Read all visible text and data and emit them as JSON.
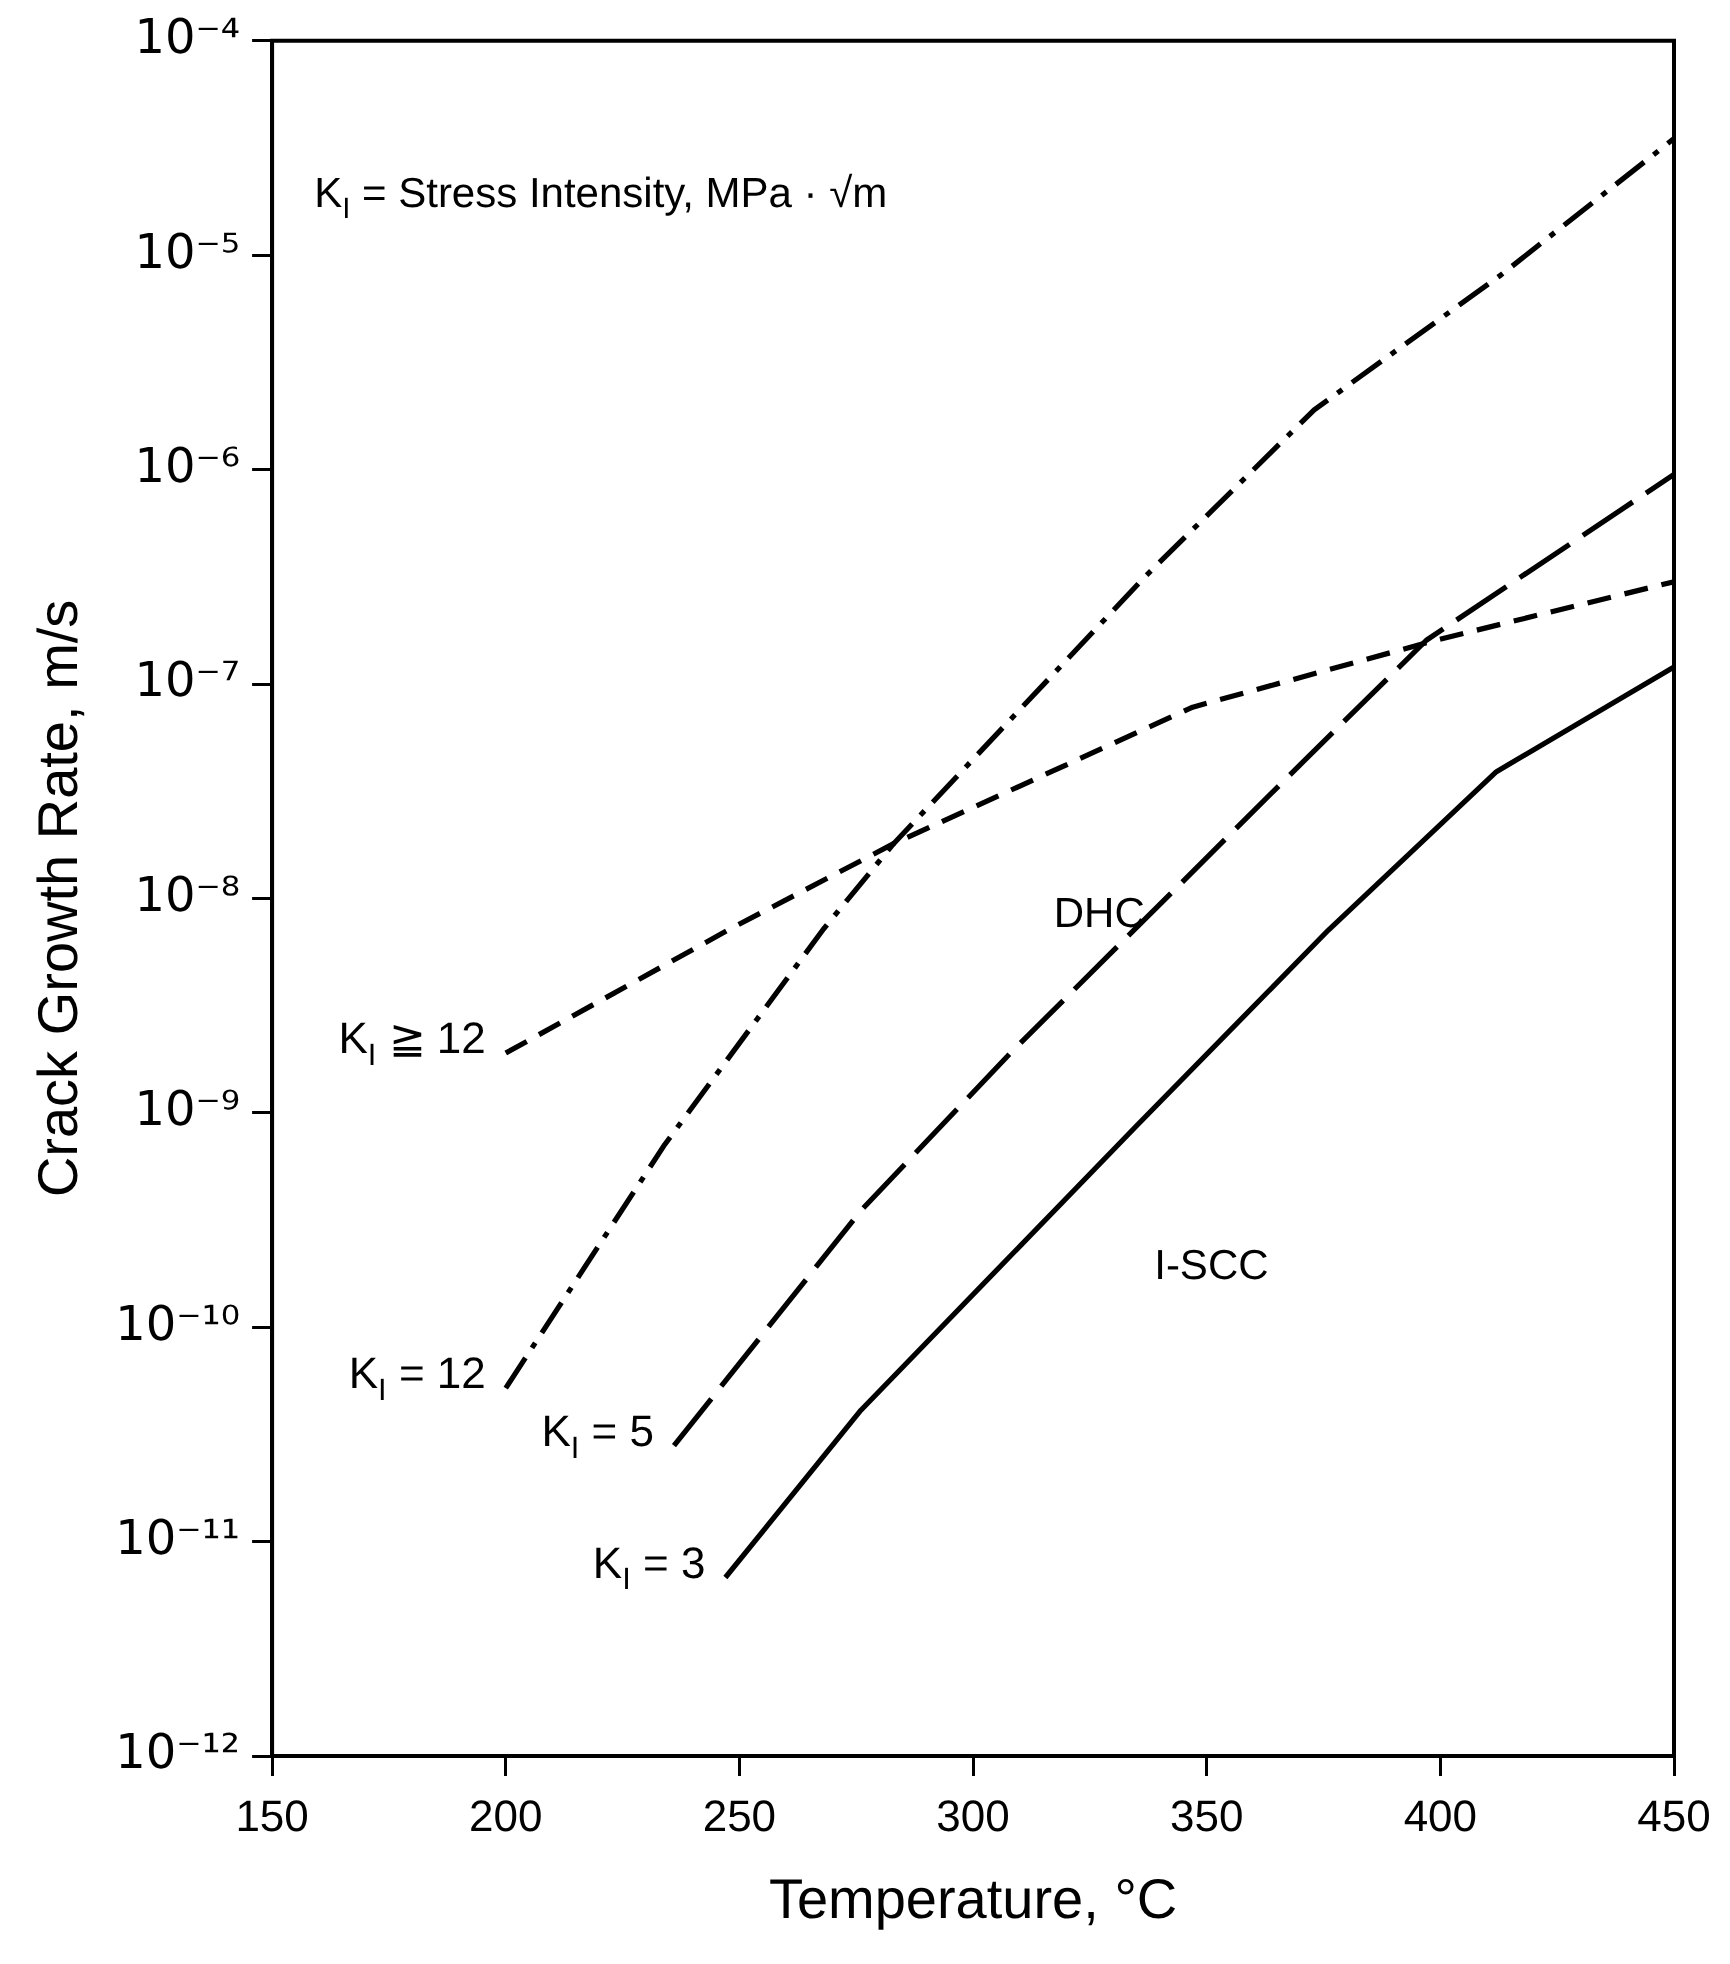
{
  "chart_data": {
    "type": "line",
    "xlabel": "Temperature, °C",
    "ylabel": "Crack Growth Rate, m/s",
    "log": "y",
    "grid": false,
    "legend": false,
    "marker": "none",
    "xlim": [
      150,
      450
    ],
    "xticks": [
      150,
      200,
      250,
      300,
      350,
      400,
      450
    ],
    "ylim": [
      1e-12,
      0.0001
    ],
    "yticks": [
      {
        "value": 1e-12,
        "label": "10⁻¹²"
      },
      {
        "value": 1e-11,
        "label": "10⁻¹¹"
      },
      {
        "value": 1e-10,
        "label": "10⁻¹⁰"
      },
      {
        "value": 1e-09,
        "label": "10⁻⁹"
      },
      {
        "value": 1e-08,
        "label": "10⁻⁸"
      },
      {
        "value": 1e-07,
        "label": "10⁻⁷"
      },
      {
        "value": 1e-06,
        "label": "10⁻⁶"
      },
      {
        "value": 1e-05,
        "label": "10⁻⁵"
      },
      {
        "value": 0.0001,
        "label": "10⁻⁴"
      }
    ],
    "series": [
      {
        "name": "K$_{I}$ ≧ 12",
        "color": "#000000",
        "line_style": "dashed",
        "x": [
          200,
          248,
          283,
          347,
          399,
          450
        ],
        "values": [
          1.9e-09,
          7.2e-09,
          1.8e-08,
          7.8e-08,
          1.6e-07,
          3e-07
        ]
      },
      {
        "name": "K$_{I}$ = 12",
        "color": "#000000",
        "line_style": "dashdot",
        "x": [
          200,
          234,
          268,
          283,
          337,
          373,
          413,
          450
        ],
        "values": [
          5.2e-11,
          7.1e-10,
          7.2e-09,
          1.8e-08,
          3.2e-07,
          1.9e-06,
          8.1e-06,
          3.5e-05
        ]
      },
      {
        "name": "K$_{I}$ = 5",
        "color": "#000000",
        "line_style": "longdash",
        "x": [
          236,
          276,
          308,
          369,
          397,
          450
        ],
        "values": [
          2.8e-11,
          3.5e-10,
          1.9e-09,
          4e-08,
          1.6e-07,
          9.5e-07
        ]
      },
      {
        "name": "K$_{I}$ = 3",
        "color": "#000000",
        "line_style": "solid",
        "x": [
          247,
          276,
          335,
          376,
          412,
          450
        ],
        "values": [
          6.8e-12,
          4.1e-11,
          8.7e-10,
          7.1e-09,
          3.9e-08,
          1.2e-07
        ]
      }
    ],
    "annotations": [
      "K$_{I}$ = Stress Intensity, MPa · √m",
      "DHC",
      "I-SCC"
    ]
  }
}
